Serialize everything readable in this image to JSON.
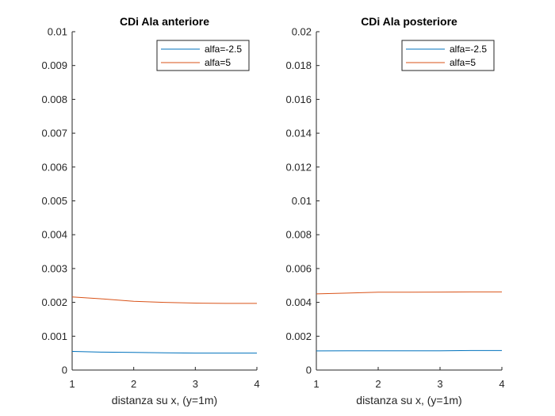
{
  "chart_data": [
    {
      "type": "line",
      "title": "CDi Ala anteriore",
      "xlabel": "distanza su x, (y=1m)",
      "ylabel": "",
      "xlim": [
        1,
        4
      ],
      "ylim": [
        0,
        0.01
      ],
      "xticks": [
        "1",
        "2",
        "3",
        "4"
      ],
      "yticks": [
        "0",
        "0.001",
        "0.002",
        "0.003",
        "0.004",
        "0.005",
        "0.006",
        "0.007",
        "0.008",
        "0.009",
        "0.01"
      ],
      "x": [
        1,
        1.5,
        2,
        2.5,
        3,
        3.5,
        4
      ],
      "series": [
        {
          "name": "alfa=-2.5",
          "color": "#0072BD",
          "values": [
            0.00055,
            0.00053,
            0.00052,
            0.00051,
            0.0005,
            0.0005,
            0.0005
          ]
        },
        {
          "name": "alfa=5",
          "color": "#D95319",
          "values": [
            0.00216,
            0.0021,
            0.00203,
            0.002,
            0.00198,
            0.00197,
            0.00197
          ]
        }
      ],
      "legend": "top-right",
      "grid": false
    },
    {
      "type": "line",
      "title": "CDi Ala posteriore",
      "xlabel": "distanza su x, (y=1m)",
      "ylabel": "",
      "xlim": [
        1,
        4
      ],
      "ylim": [
        0,
        0.02
      ],
      "xticks": [
        "1",
        "2",
        "3",
        "4"
      ],
      "yticks": [
        "0",
        "0.002",
        "0.004",
        "0.006",
        "0.008",
        "0.01",
        "0.012",
        "0.014",
        "0.016",
        "0.018",
        "0.02"
      ],
      "x": [
        1,
        1.5,
        2,
        2.5,
        3,
        3.5,
        4
      ],
      "series": [
        {
          "name": "alfa=-2.5",
          "color": "#0072BD",
          "values": [
            0.00113,
            0.00114,
            0.00114,
            0.00114,
            0.00114,
            0.00115,
            0.00115
          ]
        },
        {
          "name": "alfa=5",
          "color": "#D95319",
          "values": [
            0.0045,
            0.00455,
            0.0046,
            0.0046,
            0.00461,
            0.00462,
            0.00462
          ]
        }
      ],
      "legend": "top-right",
      "grid": false
    }
  ]
}
